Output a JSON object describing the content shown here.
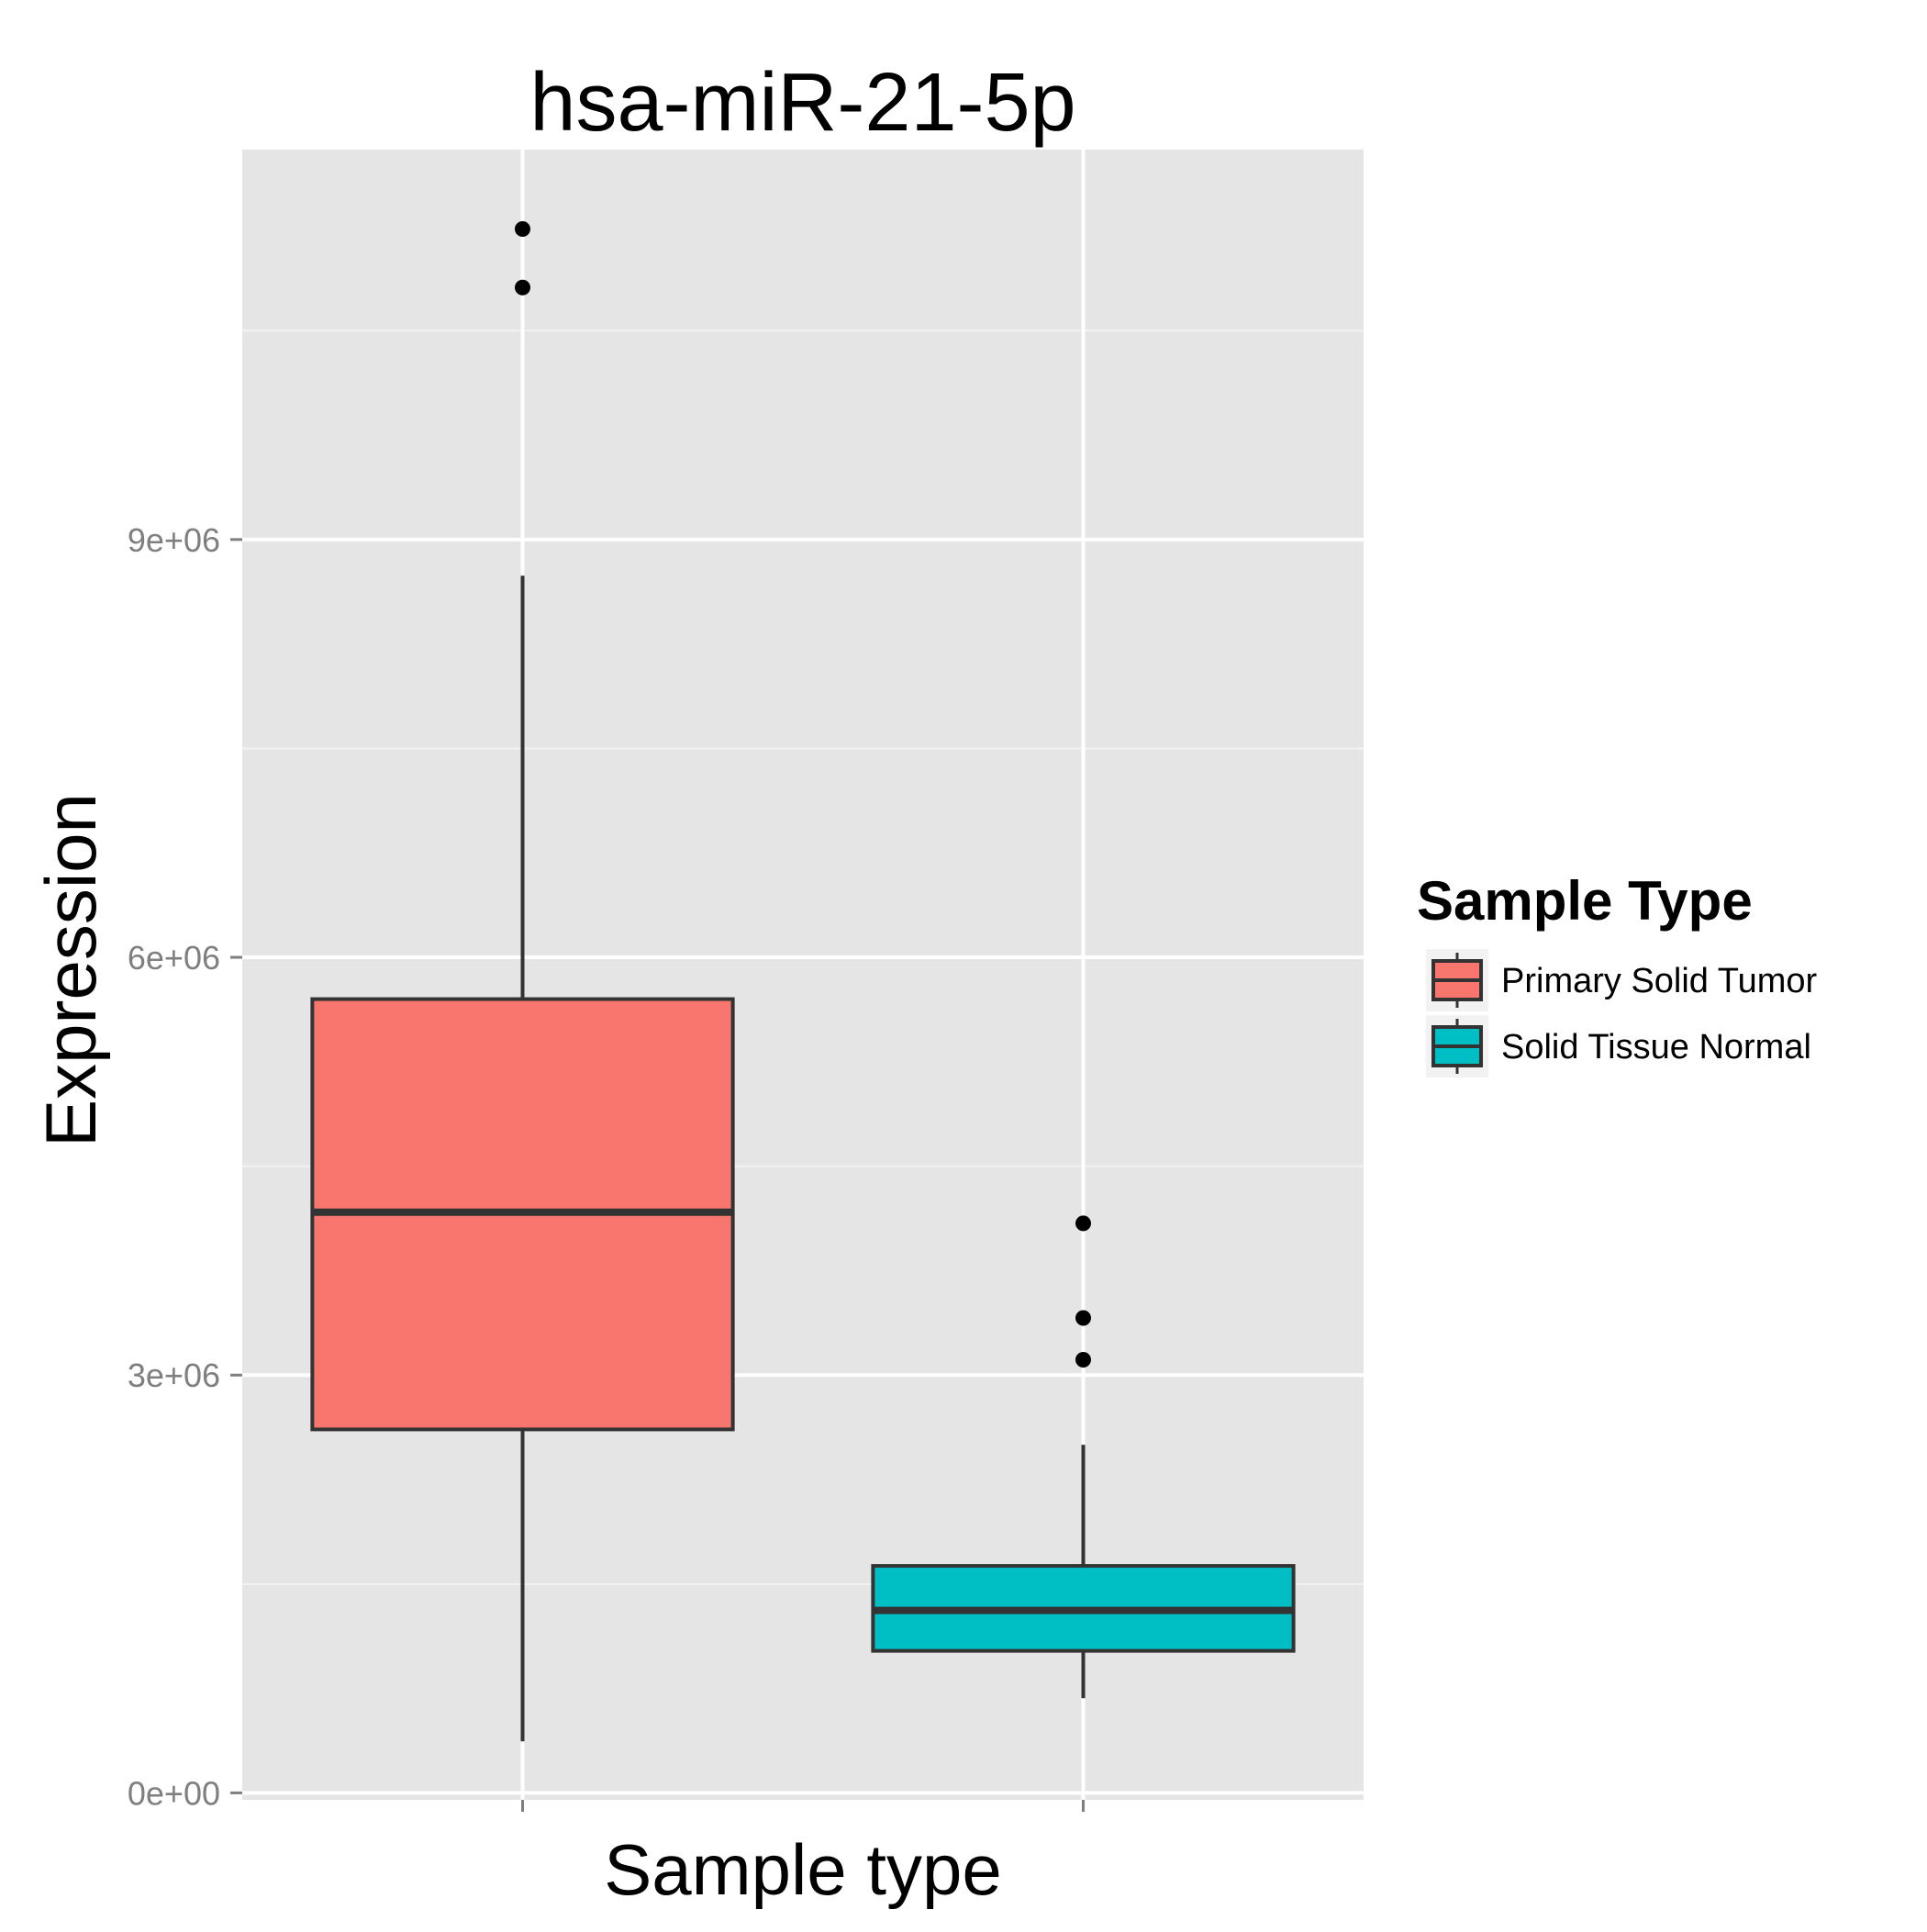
{
  "chart_data": {
    "type": "box",
    "title": "hsa-miR-21-5p",
    "xlabel": "Sample type",
    "ylabel": "Expression",
    "ylim": [
      -50000,
      11800000
    ],
    "grid": true,
    "legend_position": "right",
    "yticks": [
      {
        "value": 0,
        "label": "0e+00"
      },
      {
        "value": 3000000,
        "label": "3e+06"
      },
      {
        "value": 6000000,
        "label": "6e+06"
      },
      {
        "value": 9000000,
        "label": "9e+06"
      }
    ],
    "yminor": [
      1500000,
      4500000,
      7500000,
      10500000
    ],
    "legend": {
      "title": "Sample Type",
      "entries": [
        {
          "label": "Primary Solid Tumor",
          "color": "#F8766D"
        },
        {
          "label": "Solid Tissue Normal",
          "color": "#00BFC4"
        }
      ]
    },
    "series": [
      {
        "name": "Primary Solid Tumor",
        "color": "#F8766D",
        "whisker_low": 370000,
        "q1": 2610000,
        "median": 4170000,
        "q3": 5700000,
        "whisker_high": 8740000,
        "outliers": [
          10810000,
          11230000
        ]
      },
      {
        "name": "Solid Tissue Normal",
        "color": "#00BFC4",
        "whisker_low": 680000,
        "q1": 1020000,
        "median": 1310000,
        "q3": 1630000,
        "whisker_high": 2500000,
        "outliers": [
          3110000,
          3410000,
          4090000
        ]
      }
    ]
  }
}
